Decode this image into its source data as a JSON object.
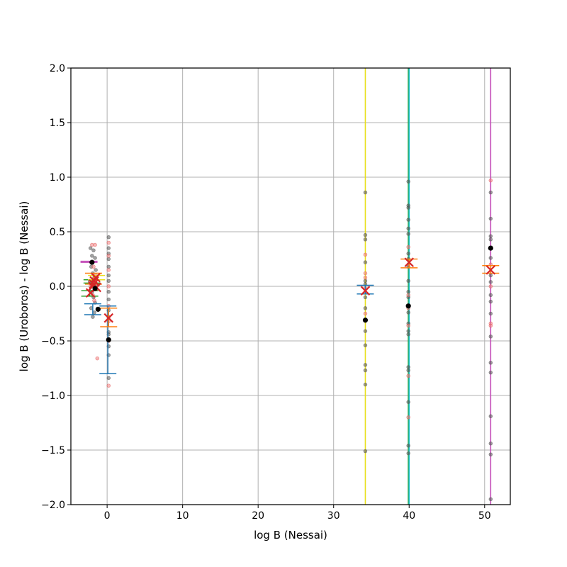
{
  "chart_data": {
    "type": "scatter",
    "title": "",
    "xlabel": "log B (Nessai)",
    "ylabel": "log B (Uroboros) - log B (Nessai)",
    "xlim": [
      -4.8,
      53.4
    ],
    "ylim": [
      -2.0,
      2.0
    ],
    "grid": true,
    "x_ticks": [
      0,
      10,
      20,
      30,
      40,
      50
    ],
    "y_ticks": [
      -2.0,
      -1.5,
      -1.0,
      -0.5,
      0.0,
      0.5,
      1.0,
      1.5,
      2.0
    ],
    "x_tick_labels": [
      "0",
      "10",
      "20",
      "30",
      "40",
      "50"
    ],
    "y_tick_labels": [
      "−2.0",
      "−1.5",
      "−1.0",
      "−0.5",
      "0.0",
      "0.5",
      "1.0",
      "1.5",
      "2.0"
    ],
    "colors": {
      "yellow": "#e8e01c",
      "green": "#2ca02c",
      "teal": "#17becf",
      "magenta": "#c44eb8",
      "blue": "#1f77b4",
      "orange": "#ff7f0e",
      "red_marker": "#d62728",
      "gray_point": "#555555",
      "pink_point": "#f08080",
      "black_point": "#000000",
      "grid": "#b0b0b0"
    },
    "vertical_lines": [
      {
        "x": 34.2,
        "color": "#e8e01c"
      },
      {
        "x": 39.9,
        "color": "#2ca02c"
      },
      {
        "x": 40.0,
        "color": "#17becf"
      },
      {
        "x": 50.8,
        "color": "#c44eb8"
      }
    ],
    "gray_points": [
      {
        "x": -2.2,
        "y": 0.35
      },
      {
        "x": -2.0,
        "y": 0.28
      },
      {
        "x": -1.8,
        "y": 0.33
      },
      {
        "x": -1.6,
        "y": 0.26
      },
      {
        "x": -2.1,
        "y": 0.18
      },
      {
        "x": -1.9,
        "y": 0.12
      },
      {
        "x": -1.7,
        "y": 0.08
      },
      {
        "x": -1.5,
        "y": 0.15
      },
      {
        "x": -2.3,
        "y": 0.05
      },
      {
        "x": -2.0,
        "y": -0.05
      },
      {
        "x": -1.8,
        "y": -0.1
      },
      {
        "x": -1.6,
        "y": -0.15
      },
      {
        "x": -2.1,
        "y": -0.2
      },
      {
        "x": -1.9,
        "y": -0.28
      },
      {
        "x": -1.7,
        "y": -0.24
      },
      {
        "x": -1.4,
        "y": 0.02
      },
      {
        "x": 0.2,
        "y": 0.45
      },
      {
        "x": 0.2,
        "y": 0.35
      },
      {
        "x": 0.2,
        "y": 0.3
      },
      {
        "x": 0.2,
        "y": 0.25
      },
      {
        "x": 0.2,
        "y": 0.18
      },
      {
        "x": 0.2,
        "y": 0.1
      },
      {
        "x": 0.2,
        "y": 0.05
      },
      {
        "x": 0.2,
        "y": -0.05
      },
      {
        "x": 0.2,
        "y": -0.12
      },
      {
        "x": 0.2,
        "y": -0.22
      },
      {
        "x": 0.2,
        "y": -0.28
      },
      {
        "x": 0.2,
        "y": -0.42
      },
      {
        "x": 0.2,
        "y": -0.44
      },
      {
        "x": 0.2,
        "y": -0.55
      },
      {
        "x": 0.2,
        "y": -0.63
      },
      {
        "x": 0.2,
        "y": -0.84
      },
      {
        "x": 34.2,
        "y": 0.86
      },
      {
        "x": 34.2,
        "y": 0.47
      },
      {
        "x": 34.2,
        "y": 0.43
      },
      {
        "x": 34.2,
        "y": 0.22
      },
      {
        "x": 34.2,
        "y": 0.05
      },
      {
        "x": 34.2,
        "y": 0.02
      },
      {
        "x": 34.2,
        "y": -0.1
      },
      {
        "x": 34.2,
        "y": -0.2
      },
      {
        "x": 34.2,
        "y": -0.41
      },
      {
        "x": 34.2,
        "y": -0.54
      },
      {
        "x": 34.2,
        "y": -0.72
      },
      {
        "x": 34.2,
        "y": -0.77
      },
      {
        "x": 34.2,
        "y": -0.9
      },
      {
        "x": 34.2,
        "y": -1.51
      },
      {
        "x": 39.9,
        "y": 0.96
      },
      {
        "x": 39.9,
        "y": 0.74
      },
      {
        "x": 39.9,
        "y": 0.72
      },
      {
        "x": 39.9,
        "y": 0.61
      },
      {
        "x": 39.9,
        "y": 0.53
      },
      {
        "x": 39.9,
        "y": 0.48
      },
      {
        "x": 39.9,
        "y": 0.3
      },
      {
        "x": 39.9,
        "y": 0.25
      },
      {
        "x": 39.9,
        "y": 0.18
      },
      {
        "x": 39.9,
        "y": 0.05
      },
      {
        "x": 39.9,
        "y": -0.05
      },
      {
        "x": 39.9,
        "y": -0.1
      },
      {
        "x": 39.9,
        "y": -0.24
      },
      {
        "x": 39.9,
        "y": -0.34
      },
      {
        "x": 39.9,
        "y": -0.41
      },
      {
        "x": 39.9,
        "y": -0.44
      },
      {
        "x": 39.9,
        "y": -0.74
      },
      {
        "x": 39.9,
        "y": -0.77
      },
      {
        "x": 39.9,
        "y": -1.06
      },
      {
        "x": 39.9,
        "y": -1.46
      },
      {
        "x": 39.9,
        "y": -1.53
      },
      {
        "x": 50.8,
        "y": 0.86
      },
      {
        "x": 50.8,
        "y": 0.62
      },
      {
        "x": 50.8,
        "y": 0.46
      },
      {
        "x": 50.8,
        "y": 0.43
      },
      {
        "x": 50.8,
        "y": 0.26
      },
      {
        "x": 50.8,
        "y": 0.1
      },
      {
        "x": 50.8,
        "y": 0.04
      },
      {
        "x": 50.8,
        "y": -0.08
      },
      {
        "x": 50.8,
        "y": -0.14
      },
      {
        "x": 50.8,
        "y": -0.25
      },
      {
        "x": 50.8,
        "y": -0.46
      },
      {
        "x": 50.8,
        "y": -0.7
      },
      {
        "x": 50.8,
        "y": -0.79
      },
      {
        "x": 50.8,
        "y": -1.19
      },
      {
        "x": 50.8,
        "y": -1.44
      },
      {
        "x": 50.8,
        "y": -1.54
      },
      {
        "x": 50.8,
        "y": -1.95
      }
    ],
    "pink_points": [
      {
        "x": -2.0,
        "y": 0.38
      },
      {
        "x": -1.6,
        "y": 0.38
      },
      {
        "x": -2.1,
        "y": 0.22
      },
      {
        "x": -1.8,
        "y": 0.18
      },
      {
        "x": -1.5,
        "y": 0.1
      },
      {
        "x": -2.2,
        "y": 0.0
      },
      {
        "x": -1.9,
        "y": -0.08
      },
      {
        "x": -1.7,
        "y": -0.13
      },
      {
        "x": -1.3,
        "y": -0.66
      },
      {
        "x": 0.2,
        "y": 0.4
      },
      {
        "x": 0.2,
        "y": 0.28
      },
      {
        "x": 0.2,
        "y": 0.15
      },
      {
        "x": 0.2,
        "y": 0.0
      },
      {
        "x": 0.2,
        "y": -0.18
      },
      {
        "x": 0.2,
        "y": -0.32
      },
      {
        "x": 0.2,
        "y": -0.5
      },
      {
        "x": 0.2,
        "y": -0.91
      },
      {
        "x": 34.2,
        "y": 0.29
      },
      {
        "x": 34.2,
        "y": 0.12
      },
      {
        "x": 34.2,
        "y": 0.08
      },
      {
        "x": 34.2,
        "y": -0.02
      },
      {
        "x": 34.2,
        "y": -0.25
      },
      {
        "x": 39.9,
        "y": 0.36
      },
      {
        "x": 39.9,
        "y": 0.2
      },
      {
        "x": 39.9,
        "y": -0.08
      },
      {
        "x": 39.9,
        "y": -0.2
      },
      {
        "x": 39.9,
        "y": -0.36
      },
      {
        "x": 39.9,
        "y": -0.82
      },
      {
        "x": 39.9,
        "y": -1.2
      },
      {
        "x": 50.8,
        "y": 0.97
      },
      {
        "x": 50.8,
        "y": 0.35
      },
      {
        "x": 50.8,
        "y": 0.2
      },
      {
        "x": 50.8,
        "y": 0.0
      },
      {
        "x": 50.8,
        "y": -0.34
      },
      {
        "x": 50.8,
        "y": -0.36
      }
    ],
    "black_points": [
      {
        "x": -2.0,
        "y": 0.22
      },
      {
        "x": -1.6,
        "y": -0.02
      },
      {
        "x": -1.2,
        "y": -0.21
      },
      {
        "x": 0.2,
        "y": -0.49
      },
      {
        "x": 34.2,
        "y": -0.31
      },
      {
        "x": 39.9,
        "y": -0.18
      },
      {
        "x": 50.8,
        "y": 0.35
      }
    ],
    "error_bars": [
      {
        "x": 0.1,
        "y_low": -0.8,
        "y_high": -0.18,
        "color": "#1f77b4",
        "cap": 1.2
      },
      {
        "x": -1.9,
        "y_low": -0.26,
        "y_high": -0.16,
        "color": "#1f77b4",
        "cap": 1.2
      },
      {
        "x": 0.2,
        "y_low": -0.37,
        "y_high": -0.2,
        "color": "#ff7f0e",
        "cap": 1.2
      },
      {
        "x": -1.8,
        "y_low": 0.02,
        "y_high": 0.12,
        "color": "#ff7f0e",
        "cap": 1.2
      },
      {
        "x": -2.3,
        "y_low": -0.09,
        "y_high": -0.04,
        "color": "#2ca02c",
        "cap": 1.2
      },
      {
        "x": -2.0,
        "y_low": 0.03,
        "y_high": 0.06,
        "color": "#2ca02c",
        "cap": 1.2
      },
      {
        "x": -2.4,
        "y_low": 0.22,
        "y_high": 0.23,
        "color": "#c44eb8",
        "cap": 1.2
      },
      {
        "x": -1.4,
        "y_low": 0.06,
        "y_high": 0.1,
        "color": "#e8e01c",
        "cap": 1.2
      },
      {
        "x": 34.2,
        "y_low": -0.07,
        "y_high": 0.01,
        "color": "#1f77b4",
        "cap": 1.2
      },
      {
        "x": 40.0,
        "y_low": 0.17,
        "y_high": 0.25,
        "color": "#ff7f0e",
        "cap": 1.2
      },
      {
        "x": 50.8,
        "y_low": 0.12,
        "y_high": 0.19,
        "color": "#ff7f0e",
        "cap": 1.2
      }
    ],
    "x_markers": [
      {
        "x": -2.2,
        "y": -0.06
      },
      {
        "x": -1.9,
        "y": 0.0
      },
      {
        "x": -1.7,
        "y": 0.05
      },
      {
        "x": -1.5,
        "y": 0.08
      },
      {
        "x": -1.8,
        "y": 0.02
      },
      {
        "x": -1.4,
        "y": -0.01
      },
      {
        "x": 0.2,
        "y": -0.29
      },
      {
        "x": 34.2,
        "y": -0.04
      },
      {
        "x": 40.0,
        "y": 0.22
      },
      {
        "x": 50.8,
        "y": 0.15
      }
    ]
  }
}
